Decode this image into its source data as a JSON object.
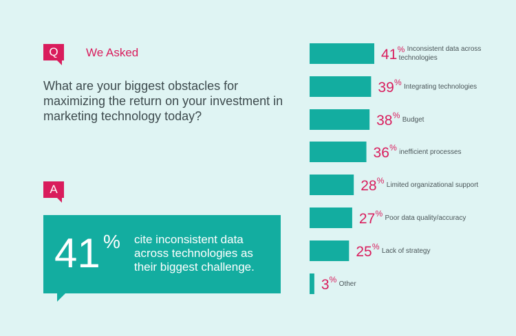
{
  "question": {
    "badge": "Q",
    "heading": "We Asked",
    "text": "What are your biggest obstacles for maximizing the return on your investment in marketing technology today?"
  },
  "answer": {
    "badge": "A",
    "big_number": "41",
    "big_unit": "%",
    "text": "cite inconsistent data across technologies as their biggest challenge."
  },
  "colors": {
    "background": "#dff4f3",
    "bar": "#13ada0",
    "accent": "#d91c5c",
    "label": "#4a5558"
  },
  "chart_data": {
    "type": "bar",
    "orientation": "horizontal",
    "unit": "%",
    "categories": [
      "Inconsistent data across technologies",
      "Integrating technologies",
      "Budget",
      "inefficient processes",
      "Limited organizational support",
      "Poor data quality/accuracy",
      "Lack of strategy",
      "Other"
    ],
    "values": [
      41,
      39,
      38,
      36,
      28,
      27,
      25,
      3
    ]
  }
}
